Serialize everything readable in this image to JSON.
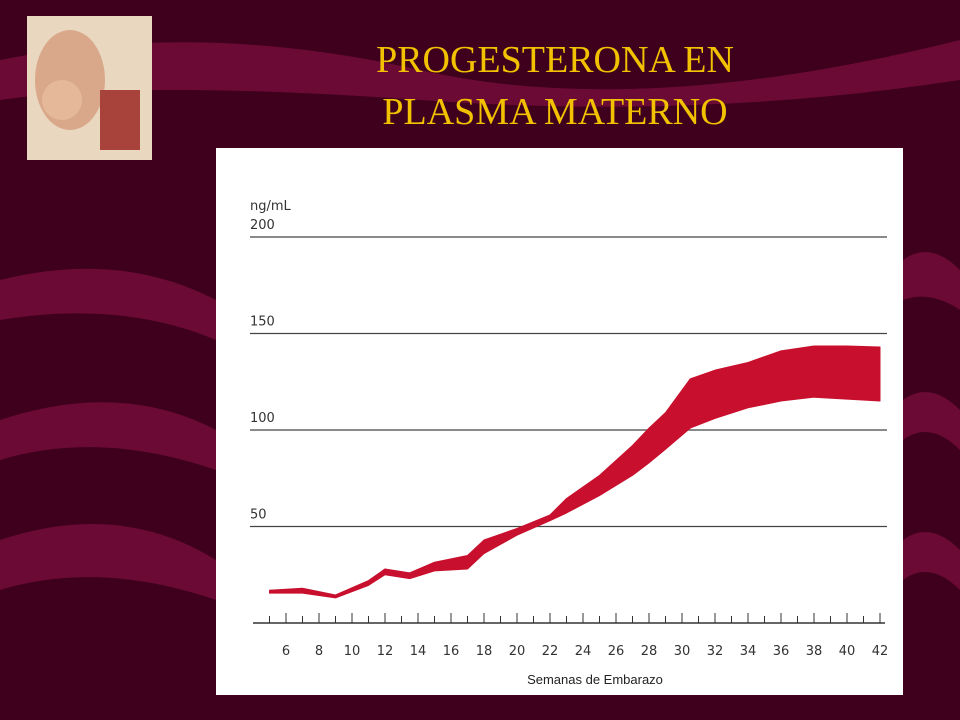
{
  "chart_data": {
    "type": "area",
    "title": [
      "PROGESTERONA EN",
      "PLASMA  MATERNO"
    ],
    "y_label": "ng/mL",
    "x_label": "Semanas de Embarazo",
    "x": [
      5,
      7,
      9,
      11,
      12,
      13.5,
      15,
      17,
      18,
      20,
      22,
      23,
      25,
      27,
      28,
      29,
      30.5,
      32,
      34,
      36,
      38,
      40,
      42
    ],
    "upper": [
      17,
      18,
      14.5,
      22,
      28,
      26,
      31.5,
      35,
      43,
      49,
      56,
      64.5,
      76.5,
      92,
      101,
      109,
      126.5,
      131,
      135,
      141,
      143.5,
      143.5,
      143
    ],
    "lower": [
      15.5,
      15.5,
      13,
      19.5,
      25,
      23,
      27,
      28,
      36,
      45.5,
      53,
      57,
      66,
      76.5,
      83,
      90,
      101,
      106,
      111.5,
      115,
      117,
      116,
      115
    ],
    "color": "#c8102e",
    "xlim": [
      4,
      42
    ],
    "xticks": [
      6,
      8,
      10,
      12,
      14,
      16,
      18,
      20,
      22,
      24,
      26,
      28,
      30,
      32,
      34,
      36,
      38,
      40,
      42
    ],
    "minor_xticks": [
      5,
      7,
      9,
      11,
      13,
      15,
      17,
      19,
      21,
      23,
      25,
      27,
      29,
      31,
      33,
      35,
      37,
      39,
      41
    ],
    "ylim": [
      0,
      200
    ],
    "yticks": [
      50,
      100,
      150,
      200
    ],
    "grid": true
  }
}
